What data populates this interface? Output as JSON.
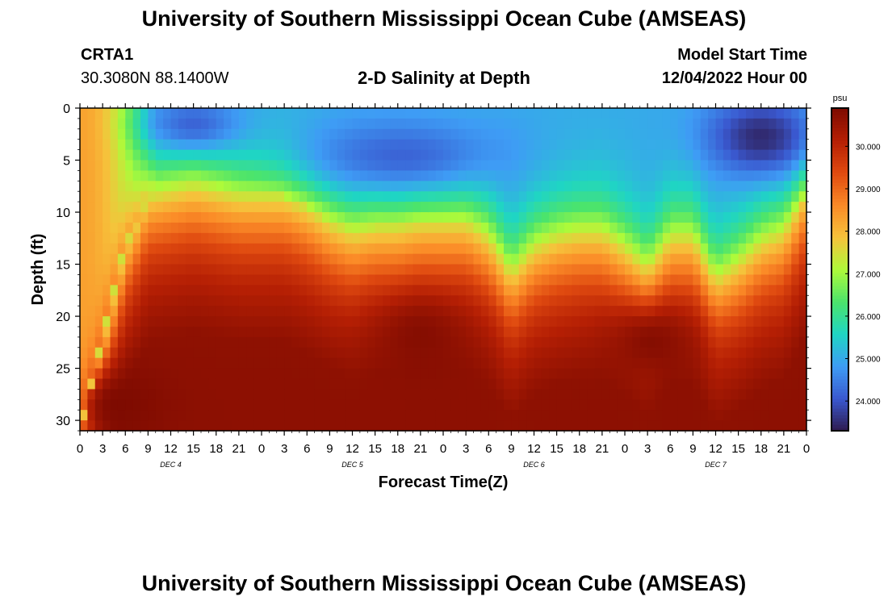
{
  "header": {
    "title": "University of Southern Mississippi Ocean Cube (AMSEAS)",
    "station": "CRTA1",
    "location": "30.3080N  88.1400W",
    "chart_title": "2-D Salinity at Depth",
    "model_start_label": "Model Start Time",
    "model_start_value": "12/04/2022 Hour 00"
  },
  "footer": {
    "title": "University of Southern Mississippi Ocean Cube (AMSEAS)"
  },
  "colors": {
    "colormap": [
      "#2e1a4d",
      "#3a58cf",
      "#3e9cf5",
      "#1fd5c4",
      "#4be46c",
      "#aefa3a",
      "#f6c23b",
      "#fb8a27",
      "#e04a10",
      "#b51f04",
      "#7e0b01"
    ]
  },
  "chart_data": {
    "type": "heatmap",
    "title": "2-D Salinity at Depth",
    "xlabel": "Forecast Time(Z)",
    "ylabel": "Depth (ft)",
    "x_ticks": [
      "0",
      "3",
      "6",
      "9",
      "12",
      "15",
      "18",
      "21",
      "0",
      "3",
      "6",
      "9",
      "12",
      "15",
      "18",
      "21",
      "0",
      "3",
      "6",
      "9",
      "12",
      "15",
      "18",
      "21",
      "0",
      "3",
      "6",
      "9",
      "12",
      "15",
      "18",
      "21",
      "0"
    ],
    "day_labels": [
      {
        "label": "DEC 4",
        "hour": 12
      },
      {
        "label": "DEC 5",
        "hour": 36
      },
      {
        "label": "DEC 6",
        "hour": 60
      },
      {
        "label": "DEC 7",
        "hour": 84
      }
    ],
    "xlim": [
      0,
      96
    ],
    "ylim": [
      0,
      31
    ],
    "y_ticks": [
      "0",
      "5",
      "10",
      "15",
      "20",
      "25",
      "30"
    ],
    "colorbar": {
      "unit": "psu",
      "range": [
        23.3,
        30.9
      ],
      "tick_labels": [
        "30.000",
        "29.000",
        "28.000",
        "27.000",
        "26.000",
        "25.000",
        "24.000"
      ]
    },
    "halocline": {
      "hours": [
        0,
        6,
        9,
        12,
        15,
        18,
        21,
        24,
        27,
        30,
        33,
        36,
        39,
        42,
        45,
        48,
        51,
        54,
        57,
        60,
        63,
        66,
        69,
        72,
        75,
        78,
        81,
        84,
        87,
        90,
        93,
        96
      ],
      "depth_ft": [
        31,
        13,
        8.5,
        8,
        7.5,
        8,
        8.5,
        8.5,
        8.5,
        9.5,
        11,
        12,
        11.5,
        11.5,
        11,
        11,
        11,
        12.5,
        16,
        13.5,
        12.5,
        12,
        12,
        13.5,
        15.5,
        12.5,
        12.5,
        16.5,
        15,
        13,
        12,
        8
      ]
    },
    "fresh_cores": [
      {
        "hours": [
          10,
          20
        ],
        "depth_ft": [
          0,
          3
        ],
        "psu": 24.2
      },
      {
        "hours": [
          30,
          55
        ],
        "depth_ft": [
          2,
          7
        ],
        "psu": 24.2
      },
      {
        "hours": [
          84,
          96
        ],
        "depth_ft": [
          0,
          5.5
        ],
        "psu": 23.5
      }
    ],
    "salty_cores": [
      {
        "hours": [
          0,
          10
        ],
        "depth_ft": [
          26,
          31
        ],
        "psu": 30.9
      },
      {
        "hours": [
          40,
          50
        ],
        "depth_ft": [
          19,
          25
        ],
        "psu": 30.8
      },
      {
        "hours": [
          71,
          80
        ],
        "depth_ft": [
          20,
          25
        ],
        "psu": 30.8
      }
    ]
  }
}
